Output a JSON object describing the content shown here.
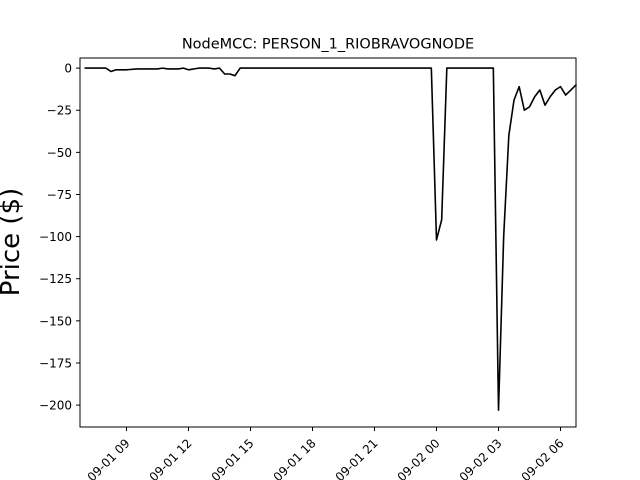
{
  "chart_data": {
    "type": "line",
    "title": "NodeMCC: PERSON_1_RIOBRAVOGNODE",
    "xlabel": "",
    "ylabel": "Price ($)",
    "ylim": [
      -213,
      6
    ],
    "yticks": [
      0,
      -25,
      -50,
      -75,
      -100,
      -125,
      -150,
      -175,
      -200
    ],
    "ytick_labels": [
      "0",
      "−25",
      "−50",
      "−75",
      "−100",
      "−125",
      "−150",
      "−175",
      "−200"
    ],
    "xlim_hours": [
      6.75,
      30.75
    ],
    "xticks_hours": [
      9,
      12,
      15,
      18,
      21,
      24,
      27,
      30
    ],
    "xtick_labels": [
      "09-01 09",
      "09-01 12",
      "09-01 15",
      "09-01 18",
      "09-01 21",
      "09-02 00",
      "09-02 03",
      "09-02 06"
    ],
    "grid": false,
    "line_color": "#000000",
    "series": [
      {
        "x": [
          "09-01 07:00",
          "09-01 08:00",
          "09-01 08:15",
          "09-01 08:30",
          "09-01 09:00",
          "09-01 09:30",
          "09-01 10:00",
          "09-01 10:30",
          "09-01 10:45",
          "09-01 11:00",
          "09-01 11:30",
          "09-01 11:45",
          "09-01 12:00",
          "09-01 12:30",
          "09-01 13:00",
          "09-01 13:15",
          "09-01 13:30",
          "09-01 13:45",
          "09-01 14:00",
          "09-01 14:15",
          "09-01 14:30",
          "09-01 14:45",
          "09-01 16:00",
          "09-01 18:00",
          "09-01 20:00",
          "09-01 22:00",
          "09-01 23:45",
          "09-02 00:00",
          "09-02 00:15",
          "09-02 00:30",
          "09-02 01:00",
          "09-02 01:30",
          "09-02 02:00",
          "09-02 02:30",
          "09-02 02:45",
          "09-02 03:00",
          "09-02 03:15",
          "09-02 03:30",
          "09-02 03:45",
          "09-02 04:00",
          "09-02 04:15",
          "09-02 04:30",
          "09-02 04:45",
          "09-02 05:00",
          "09-02 05:15",
          "09-02 05:30",
          "09-02 05:45",
          "09-02 06:00",
          "09-02 06:15",
          "09-02 06:30",
          "09-02 06:45"
        ],
        "y": [
          0,
          0,
          -2,
          -1,
          -1,
          -0.5,
          -0.5,
          -0.5,
          0,
          -0.5,
          -0.5,
          0,
          -1,
          0,
          0,
          -0.5,
          0,
          -3.5,
          -3.5,
          -4.5,
          0,
          0,
          0,
          0,
          0,
          0,
          0,
          -102,
          -90,
          0,
          0,
          0,
          0,
          0,
          0,
          -203,
          -100,
          -40,
          -19,
          -11,
          -25,
          -23,
          -17,
          -13,
          -22,
          -17,
          -13,
          -11,
          -16,
          -13,
          -10
        ]
      }
    ]
  }
}
